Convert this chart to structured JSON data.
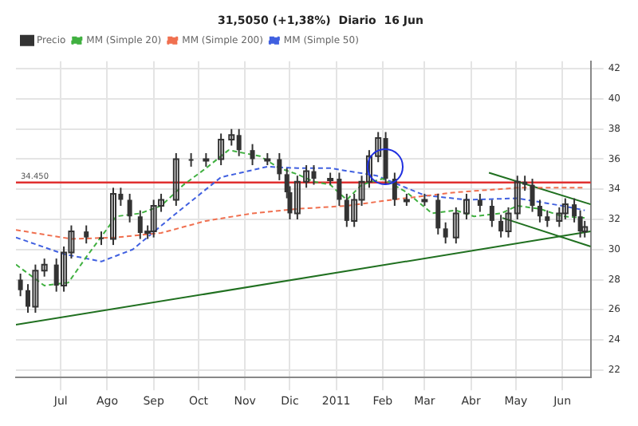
{
  "chart_data": {
    "type": "candlestick",
    "title": "31,5050 (+1,38%)  Diario  16 Jun",
    "xlim": [
      "2010-06-01",
      "2011-06-20"
    ],
    "xticks": [
      {
        "value": "2010-07-01",
        "label": "Jul"
      },
      {
        "value": "2010-08-01",
        "label": "Ago"
      },
      {
        "value": "2010-09-01",
        "label": "Sep"
      },
      {
        "value": "2010-10-01",
        "label": "Oct"
      },
      {
        "value": "2010-11-01",
        "label": "Nov"
      },
      {
        "value": "2010-12-01",
        "label": "Dic"
      },
      {
        "value": "2011-01-01",
        "label": "2011"
      },
      {
        "value": "2011-02-01",
        "label": "Feb"
      },
      {
        "value": "2011-03-01",
        "label": "Mar"
      },
      {
        "value": "2011-04-01",
        "label": "Abr"
      },
      {
        "value": "2011-05-01",
        "label": "May"
      },
      {
        "value": "2011-06-01",
        "label": "Jun"
      }
    ],
    "ylim": [
      21.5,
      42.5
    ],
    "yticks": [
      22,
      24,
      26,
      28,
      30,
      32,
      34,
      36,
      38,
      40,
      42
    ],
    "grid": true,
    "legend": "top left",
    "ref_lines": [
      {
        "axis": "y",
        "value": 34.45,
        "label": "34.450",
        "color": "#e03030"
      }
    ],
    "series": [
      {
        "name": "Precio",
        "color": "#333333",
        "x": [
          "2010-06-04",
          "2010-06-09",
          "2010-06-14",
          "2010-06-20",
          "2010-06-28",
          "2010-07-03",
          "2010-07-08",
          "2010-07-18",
          "2010-07-28",
          "2010-08-05",
          "2010-08-10",
          "2010-08-16",
          "2010-08-23",
          "2010-08-28",
          "2010-09-01",
          "2010-09-06",
          "2010-09-16",
          "2010-09-26",
          "2010-10-06",
          "2010-10-16",
          "2010-10-23",
          "2010-10-28",
          "2010-11-06",
          "2010-11-16",
          "2010-11-24",
          "2010-11-29",
          "2010-12-01",
          "2010-12-06",
          "2010-12-12",
          "2010-12-17",
          "2010-12-28",
          "2011-01-03",
          "2011-01-08",
          "2011-01-13",
          "2011-01-18",
          "2011-01-23",
          "2011-01-29",
          "2011-02-03",
          "2011-02-09",
          "2011-02-17",
          "2011-03-01",
          "2011-03-10",
          "2011-03-15",
          "2011-03-22",
          "2011-03-29",
          "2011-04-07",
          "2011-04-15",
          "2011-04-21",
          "2011-04-26",
          "2011-05-02",
          "2011-05-07",
          "2011-05-12",
          "2011-05-17",
          "2011-05-22",
          "2011-05-30",
          "2011-06-03",
          "2011-06-09",
          "2011-06-13",
          "2011-06-16"
        ],
        "ohlc": [
          [
            28.0,
            28.4,
            26.9,
            27.3
          ],
          [
            27.3,
            27.7,
            25.8,
            26.2
          ],
          [
            26.2,
            29.0,
            25.8,
            28.6
          ],
          [
            28.6,
            29.4,
            28.2,
            29.0
          ],
          [
            29.0,
            29.4,
            27.2,
            27.6
          ],
          [
            27.6,
            30.2,
            27.2,
            29.8
          ],
          [
            29.8,
            31.6,
            29.4,
            31.2
          ],
          [
            31.2,
            31.6,
            30.4,
            30.8
          ],
          [
            30.8,
            31.2,
            30.3,
            30.7
          ],
          [
            30.7,
            34.1,
            30.3,
            33.7
          ],
          [
            33.7,
            34.1,
            32.9,
            33.3
          ],
          [
            33.3,
            33.7,
            31.8,
            32.2
          ],
          [
            32.2,
            32.6,
            30.7,
            31.1
          ],
          [
            31.1,
            31.6,
            30.7,
            31.2
          ],
          [
            31.2,
            33.3,
            30.8,
            32.9
          ],
          [
            32.9,
            33.7,
            32.5,
            33.3
          ],
          [
            33.3,
            36.4,
            32.9,
            36.0
          ],
          [
            36.0,
            36.4,
            35.5,
            35.9
          ],
          [
            35.9,
            36.4,
            35.5,
            36.0
          ],
          [
            36.0,
            37.7,
            35.6,
            37.3
          ],
          [
            37.3,
            38.0,
            36.9,
            37.6
          ],
          [
            37.6,
            38.0,
            36.2,
            36.6
          ],
          [
            36.6,
            37.0,
            35.6,
            36.0
          ],
          [
            36.0,
            36.4,
            35.6,
            36.0
          ],
          [
            36.0,
            36.4,
            34.6,
            35.0
          ],
          [
            35.0,
            35.4,
            33.4,
            33.8
          ],
          [
            33.8,
            34.2,
            32.0,
            32.4
          ],
          [
            32.4,
            34.9,
            32.0,
            34.5
          ],
          [
            34.5,
            35.6,
            34.1,
            35.2
          ],
          [
            35.2,
            35.6,
            34.3,
            34.7
          ],
          [
            34.7,
            35.1,
            34.3,
            34.7
          ],
          [
            34.7,
            35.1,
            32.9,
            33.3
          ],
          [
            33.3,
            33.7,
            31.5,
            31.9
          ],
          [
            31.9,
            33.7,
            31.5,
            33.3
          ],
          [
            33.3,
            34.9,
            32.9,
            34.5
          ],
          [
            34.5,
            36.6,
            34.1,
            36.2
          ],
          [
            36.2,
            37.8,
            35.8,
            37.4
          ],
          [
            37.4,
            37.8,
            34.3,
            34.7
          ],
          [
            34.7,
            35.1,
            32.9,
            33.3
          ],
          [
            33.3,
            33.7,
            32.9,
            33.3
          ],
          [
            33.3,
            33.7,
            32.9,
            33.3
          ],
          [
            33.3,
            33.7,
            31.0,
            31.4
          ],
          [
            31.4,
            31.8,
            30.4,
            30.8
          ],
          [
            30.8,
            32.8,
            30.4,
            32.4
          ],
          [
            32.4,
            33.7,
            32.0,
            33.3
          ],
          [
            33.3,
            33.7,
            32.5,
            32.9
          ],
          [
            32.9,
            33.3,
            31.5,
            31.9
          ],
          [
            31.9,
            32.3,
            30.8,
            31.2
          ],
          [
            31.2,
            32.8,
            30.8,
            32.4
          ],
          [
            32.4,
            34.9,
            32.0,
            34.5
          ],
          [
            34.5,
            34.9,
            33.9,
            34.3
          ],
          [
            34.3,
            34.7,
            32.5,
            32.9
          ],
          [
            32.9,
            33.3,
            31.8,
            32.2
          ],
          [
            32.2,
            32.6,
            31.5,
            31.9
          ],
          [
            31.9,
            32.8,
            31.5,
            32.4
          ],
          [
            32.4,
            33.4,
            32.0,
            33.0
          ],
          [
            33.0,
            33.4,
            31.8,
            32.2
          ],
          [
            32.2,
            32.6,
            30.8,
            31.2
          ],
          [
            31.2,
            31.9,
            30.8,
            31.5
          ]
        ]
      },
      {
        "name": "MM (Simple 20)",
        "type": "line",
        "color": "#40b040",
        "line_style": "dashed",
        "x": [
          "2010-06-01",
          "2010-06-20",
          "2010-07-06",
          "2010-07-18",
          "2010-08-07",
          "2010-08-23",
          "2010-09-06",
          "2010-09-21",
          "2010-10-06",
          "2010-10-21",
          "2010-11-11",
          "2010-11-24",
          "2010-12-06",
          "2010-12-17",
          "2010-12-28",
          "2011-01-08",
          "2011-01-18",
          "2011-02-01",
          "2011-02-17",
          "2011-03-06",
          "2011-03-22",
          "2011-04-03",
          "2011-04-21",
          "2011-05-02",
          "2011-05-17",
          "2011-06-01",
          "2011-06-16"
        ],
        "values": [
          29.0,
          27.6,
          27.8,
          29.5,
          32.2,
          32.4,
          32.9,
          34.3,
          35.4,
          36.6,
          36.2,
          35.4,
          35.0,
          34.5,
          34.3,
          33.3,
          34.3,
          34.7,
          33.8,
          32.4,
          32.6,
          32.2,
          32.4,
          32.9,
          32.7,
          32.2,
          32.1
        ]
      },
      {
        "name": "MM (Simple 200)",
        "type": "line",
        "color": "#f07050",
        "line_style": "dashed",
        "x": [
          "2010-06-01",
          "2010-07-08",
          "2010-08-07",
          "2010-09-06",
          "2010-10-06",
          "2010-11-06",
          "2010-12-06",
          "2011-01-08",
          "2011-02-07",
          "2011-03-22",
          "2011-05-02",
          "2011-06-16"
        ],
        "values": [
          31.3,
          30.7,
          30.8,
          31.1,
          31.9,
          32.4,
          32.7,
          32.9,
          33.3,
          33.8,
          34.1,
          34.1
        ]
      },
      {
        "name": "MM (Simple 50)",
        "type": "line",
        "color": "#4060e0",
        "line_style": "dashed",
        "x": [
          "2010-06-01",
          "2010-07-03",
          "2010-07-28",
          "2010-08-18",
          "2010-09-16",
          "2010-10-16",
          "2010-11-16",
          "2010-12-06",
          "2010-12-28",
          "2011-01-28",
          "2011-03-01",
          "2011-03-29",
          "2011-05-02",
          "2011-06-01",
          "2011-06-16"
        ],
        "values": [
          30.8,
          29.7,
          29.2,
          30.0,
          32.4,
          34.8,
          35.5,
          35.4,
          35.4,
          34.9,
          33.6,
          33.3,
          33.4,
          32.9,
          32.6
        ]
      },
      {
        "type": "line",
        "color": "#207020",
        "line_style": "solid",
        "x": [
          "2010-06-01",
          "2011-06-20"
        ],
        "values": [
          25.0,
          31.2
        ]
      },
      {
        "type": "line",
        "color": "#207020",
        "line_style": "solid",
        "x": [
          "2011-04-13",
          "2011-06-20"
        ],
        "values": [
          35.1,
          33.0
        ]
      },
      {
        "type": "line",
        "color": "#207020",
        "line_style": "solid",
        "x": [
          "2011-04-22",
          "2011-06-20"
        ],
        "values": [
          32.1,
          30.2
        ]
      }
    ]
  }
}
